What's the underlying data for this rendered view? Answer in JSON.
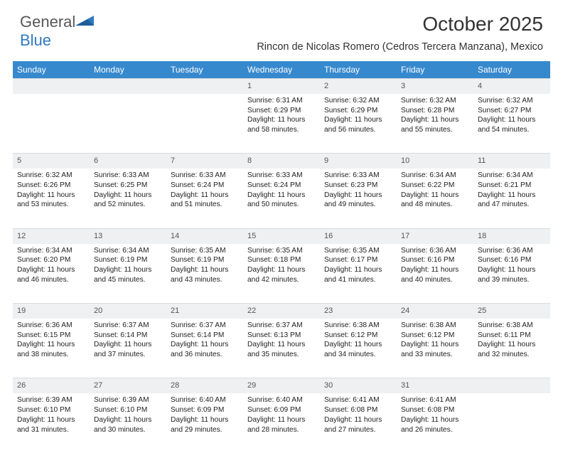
{
  "brand": {
    "name_a": "General",
    "name_b": "Blue",
    "logo_color": "#2f79bd",
    "text_color": "#575757"
  },
  "title": "October 2025",
  "location": "Rincon de Nicolas Romero (Cedros Tercera Manzana), Mexico",
  "colors": {
    "header_bg": "#3789ce",
    "header_fg": "#ffffff",
    "daynum_bg": "#eef0f2",
    "daynum_fg": "#555555",
    "body_fg": "#222222",
    "page_bg": "#ffffff"
  },
  "typography": {
    "title_fontsize": 28,
    "location_fontsize": 14.5,
    "header_fontsize": 12,
    "cell_fontsize": 10.2,
    "daynum_fontsize": 11
  },
  "day_headers": [
    "Sunday",
    "Monday",
    "Tuesday",
    "Wednesday",
    "Thursday",
    "Friday",
    "Saturday"
  ],
  "weeks": [
    [
      {},
      {},
      {},
      {
        "num": "1",
        "sunrise": "Sunrise: 6:31 AM",
        "sunset": "Sunset: 6:29 PM",
        "day1": "Daylight: 11 hours",
        "day2": "and 58 minutes."
      },
      {
        "num": "2",
        "sunrise": "Sunrise: 6:32 AM",
        "sunset": "Sunset: 6:29 PM",
        "day1": "Daylight: 11 hours",
        "day2": "and 56 minutes."
      },
      {
        "num": "3",
        "sunrise": "Sunrise: 6:32 AM",
        "sunset": "Sunset: 6:28 PM",
        "day1": "Daylight: 11 hours",
        "day2": "and 55 minutes."
      },
      {
        "num": "4",
        "sunrise": "Sunrise: 6:32 AM",
        "sunset": "Sunset: 6:27 PM",
        "day1": "Daylight: 11 hours",
        "day2": "and 54 minutes."
      }
    ],
    [
      {
        "num": "5",
        "sunrise": "Sunrise: 6:32 AM",
        "sunset": "Sunset: 6:26 PM",
        "day1": "Daylight: 11 hours",
        "day2": "and 53 minutes."
      },
      {
        "num": "6",
        "sunrise": "Sunrise: 6:33 AM",
        "sunset": "Sunset: 6:25 PM",
        "day1": "Daylight: 11 hours",
        "day2": "and 52 minutes."
      },
      {
        "num": "7",
        "sunrise": "Sunrise: 6:33 AM",
        "sunset": "Sunset: 6:24 PM",
        "day1": "Daylight: 11 hours",
        "day2": "and 51 minutes."
      },
      {
        "num": "8",
        "sunrise": "Sunrise: 6:33 AM",
        "sunset": "Sunset: 6:24 PM",
        "day1": "Daylight: 11 hours",
        "day2": "and 50 minutes."
      },
      {
        "num": "9",
        "sunrise": "Sunrise: 6:33 AM",
        "sunset": "Sunset: 6:23 PM",
        "day1": "Daylight: 11 hours",
        "day2": "and 49 minutes."
      },
      {
        "num": "10",
        "sunrise": "Sunrise: 6:34 AM",
        "sunset": "Sunset: 6:22 PM",
        "day1": "Daylight: 11 hours",
        "day2": "and 48 minutes."
      },
      {
        "num": "11",
        "sunrise": "Sunrise: 6:34 AM",
        "sunset": "Sunset: 6:21 PM",
        "day1": "Daylight: 11 hours",
        "day2": "and 47 minutes."
      }
    ],
    [
      {
        "num": "12",
        "sunrise": "Sunrise: 6:34 AM",
        "sunset": "Sunset: 6:20 PM",
        "day1": "Daylight: 11 hours",
        "day2": "and 46 minutes."
      },
      {
        "num": "13",
        "sunrise": "Sunrise: 6:34 AM",
        "sunset": "Sunset: 6:19 PM",
        "day1": "Daylight: 11 hours",
        "day2": "and 45 minutes."
      },
      {
        "num": "14",
        "sunrise": "Sunrise: 6:35 AM",
        "sunset": "Sunset: 6:19 PM",
        "day1": "Daylight: 11 hours",
        "day2": "and 43 minutes."
      },
      {
        "num": "15",
        "sunrise": "Sunrise: 6:35 AM",
        "sunset": "Sunset: 6:18 PM",
        "day1": "Daylight: 11 hours",
        "day2": "and 42 minutes."
      },
      {
        "num": "16",
        "sunrise": "Sunrise: 6:35 AM",
        "sunset": "Sunset: 6:17 PM",
        "day1": "Daylight: 11 hours",
        "day2": "and 41 minutes."
      },
      {
        "num": "17",
        "sunrise": "Sunrise: 6:36 AM",
        "sunset": "Sunset: 6:16 PM",
        "day1": "Daylight: 11 hours",
        "day2": "and 40 minutes."
      },
      {
        "num": "18",
        "sunrise": "Sunrise: 6:36 AM",
        "sunset": "Sunset: 6:16 PM",
        "day1": "Daylight: 11 hours",
        "day2": "and 39 minutes."
      }
    ],
    [
      {
        "num": "19",
        "sunrise": "Sunrise: 6:36 AM",
        "sunset": "Sunset: 6:15 PM",
        "day1": "Daylight: 11 hours",
        "day2": "and 38 minutes."
      },
      {
        "num": "20",
        "sunrise": "Sunrise: 6:37 AM",
        "sunset": "Sunset: 6:14 PM",
        "day1": "Daylight: 11 hours",
        "day2": "and 37 minutes."
      },
      {
        "num": "21",
        "sunrise": "Sunrise: 6:37 AM",
        "sunset": "Sunset: 6:14 PM",
        "day1": "Daylight: 11 hours",
        "day2": "and 36 minutes."
      },
      {
        "num": "22",
        "sunrise": "Sunrise: 6:37 AM",
        "sunset": "Sunset: 6:13 PM",
        "day1": "Daylight: 11 hours",
        "day2": "and 35 minutes."
      },
      {
        "num": "23",
        "sunrise": "Sunrise: 6:38 AM",
        "sunset": "Sunset: 6:12 PM",
        "day1": "Daylight: 11 hours",
        "day2": "and 34 minutes."
      },
      {
        "num": "24",
        "sunrise": "Sunrise: 6:38 AM",
        "sunset": "Sunset: 6:12 PM",
        "day1": "Daylight: 11 hours",
        "day2": "and 33 minutes."
      },
      {
        "num": "25",
        "sunrise": "Sunrise: 6:38 AM",
        "sunset": "Sunset: 6:11 PM",
        "day1": "Daylight: 11 hours",
        "day2": "and 32 minutes."
      }
    ],
    [
      {
        "num": "26",
        "sunrise": "Sunrise: 6:39 AM",
        "sunset": "Sunset: 6:10 PM",
        "day1": "Daylight: 11 hours",
        "day2": "and 31 minutes."
      },
      {
        "num": "27",
        "sunrise": "Sunrise: 6:39 AM",
        "sunset": "Sunset: 6:10 PM",
        "day1": "Daylight: 11 hours",
        "day2": "and 30 minutes."
      },
      {
        "num": "28",
        "sunrise": "Sunrise: 6:40 AM",
        "sunset": "Sunset: 6:09 PM",
        "day1": "Daylight: 11 hours",
        "day2": "and 29 minutes."
      },
      {
        "num": "29",
        "sunrise": "Sunrise: 6:40 AM",
        "sunset": "Sunset: 6:09 PM",
        "day1": "Daylight: 11 hours",
        "day2": "and 28 minutes."
      },
      {
        "num": "30",
        "sunrise": "Sunrise: 6:41 AM",
        "sunset": "Sunset: 6:08 PM",
        "day1": "Daylight: 11 hours",
        "day2": "and 27 minutes."
      },
      {
        "num": "31",
        "sunrise": "Sunrise: 6:41 AM",
        "sunset": "Sunset: 6:08 PM",
        "day1": "Daylight: 11 hours",
        "day2": "and 26 minutes."
      },
      {}
    ]
  ]
}
